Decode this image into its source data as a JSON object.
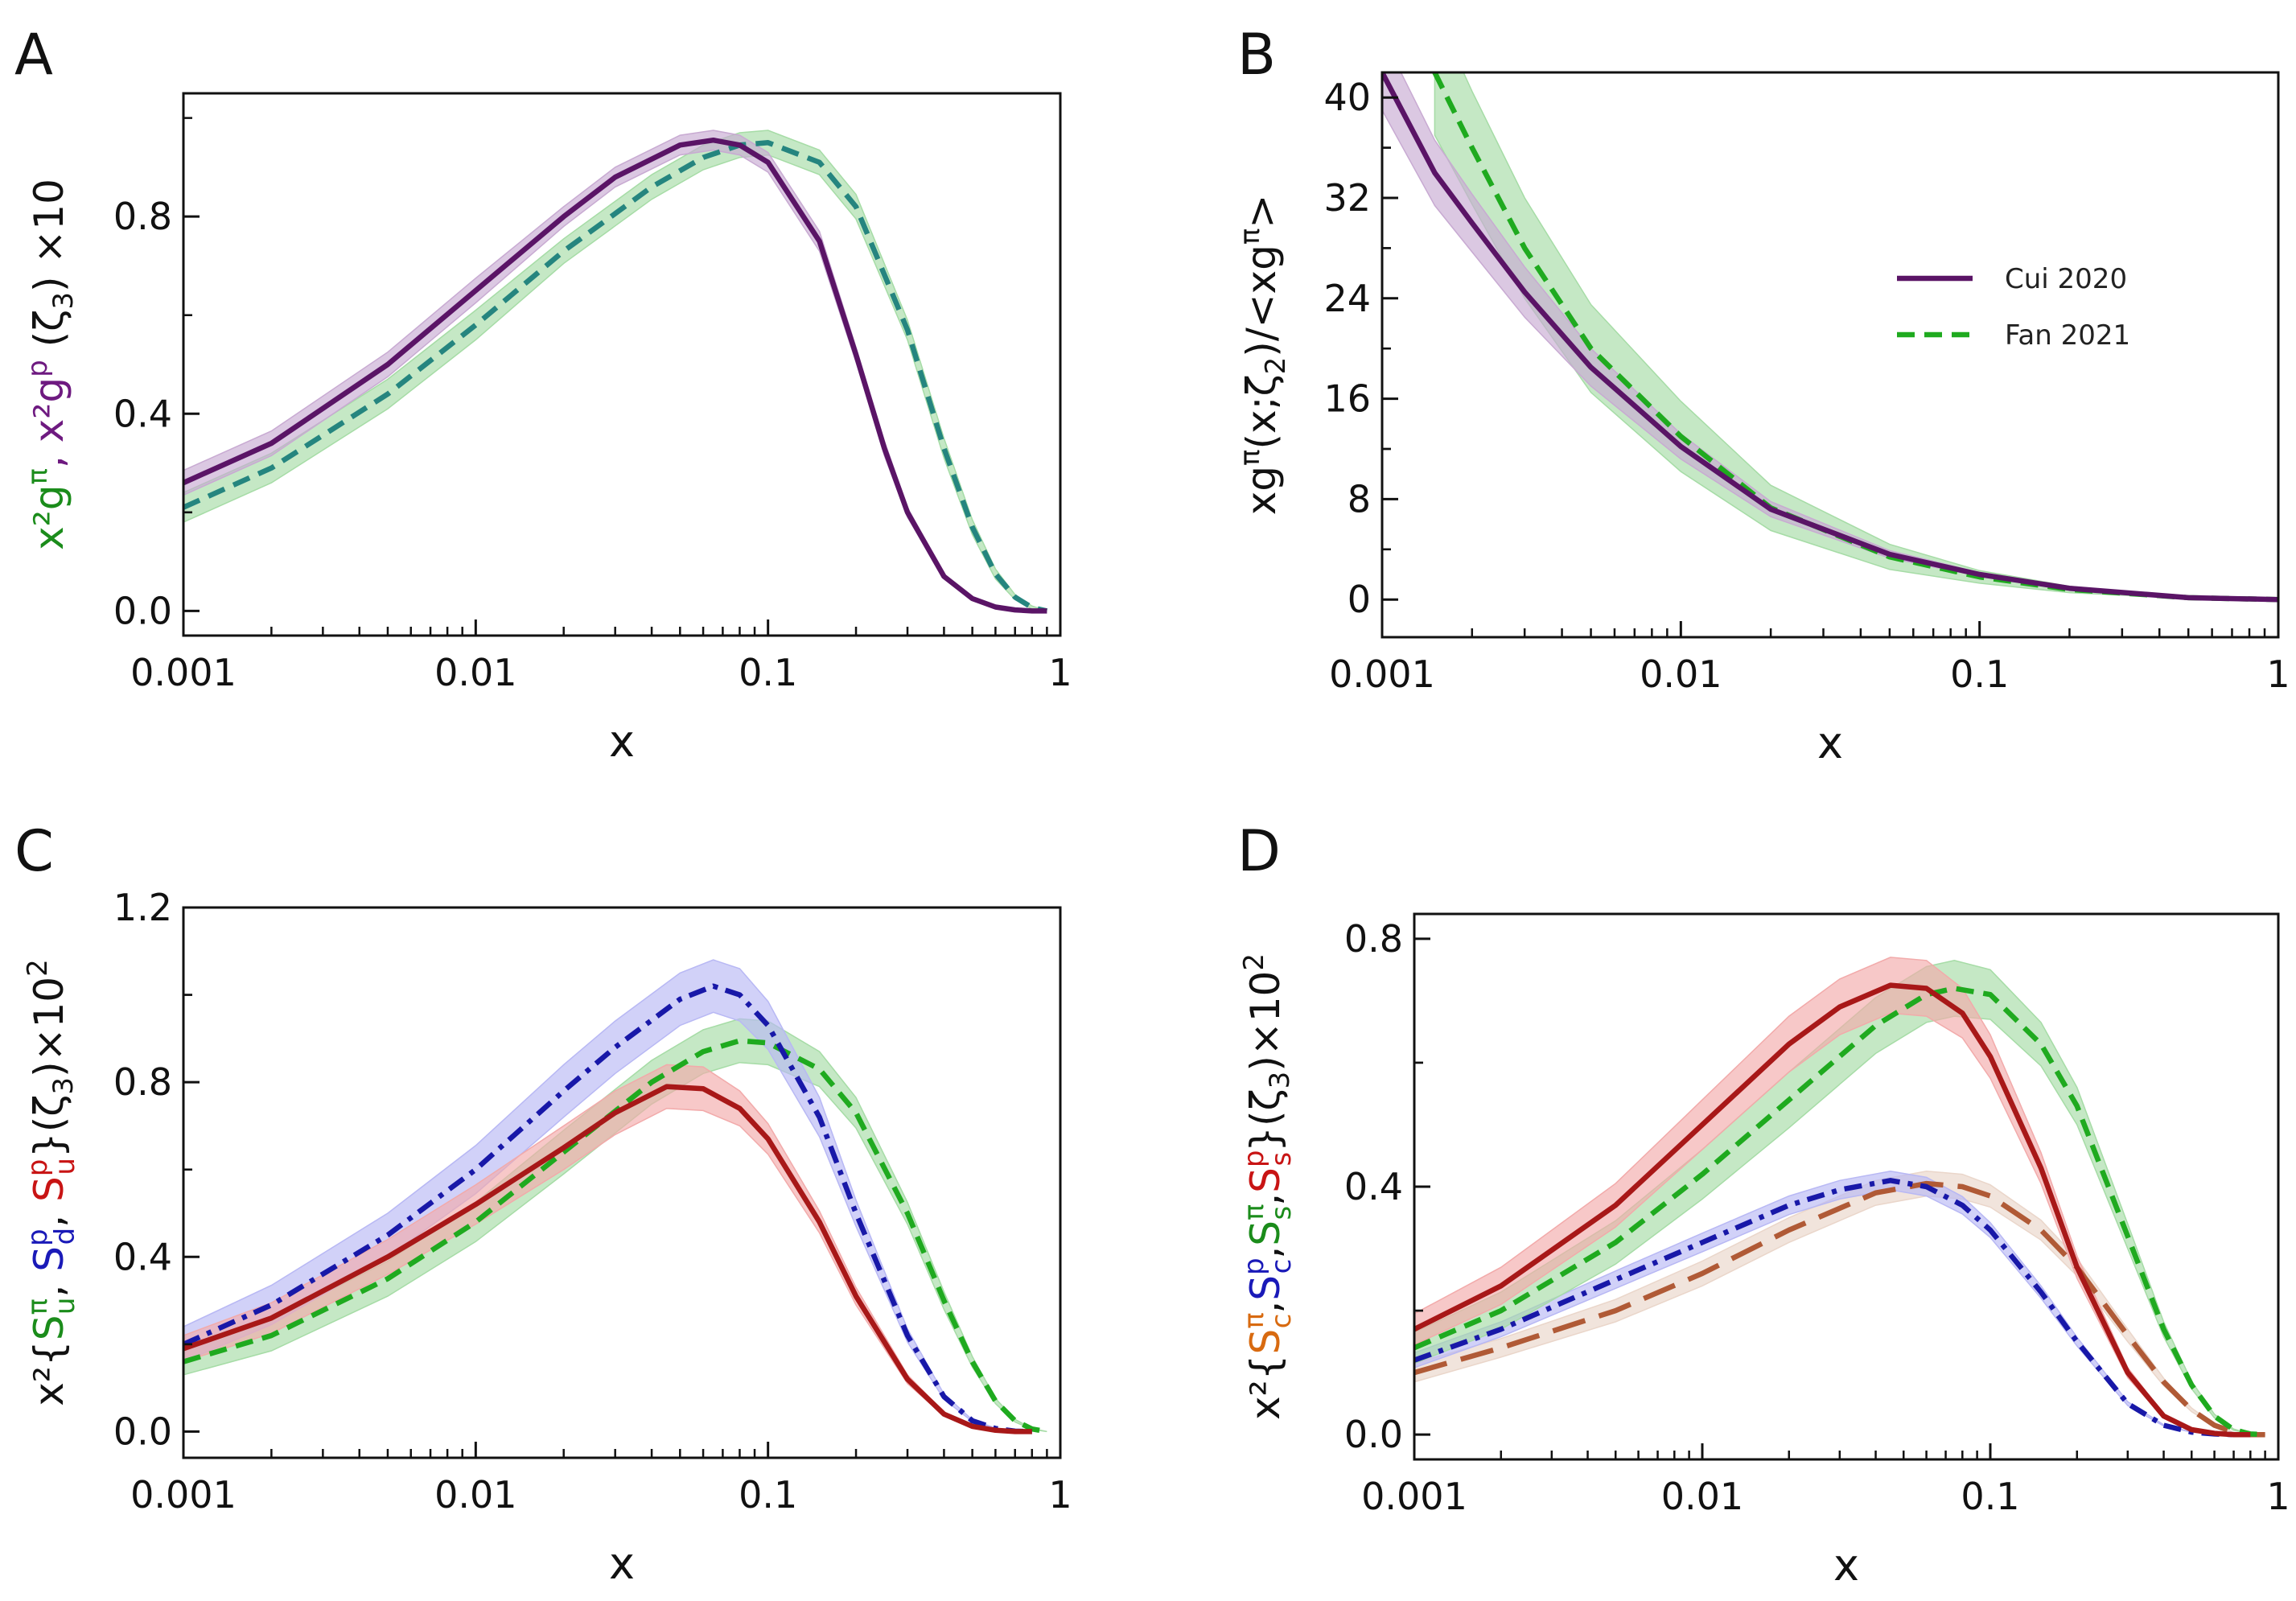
{
  "colors": {
    "purple": "#5a1466",
    "teal": "#25857f",
    "green": "#1faa1f",
    "blue": "#1818a8",
    "red": "#a81818",
    "brown": "#b05a36",
    "band_purple": "#c8aad2",
    "band_green": "#a6dca6",
    "band_blue": "#b8b8f4",
    "band_red": "#f2aaaa",
    "band_brown": "#ead6ca",
    "label_green": "#1b8c1b",
    "label_purple": "#6e1a80",
    "label_blue": "#1a1ab8",
    "label_red": "#c81414",
    "label_orange": "#d86a10"
  },
  "chart_data": [
    {
      "type": "line",
      "panel": "A",
      "xlabel": "x",
      "ylabel_parts": [
        {
          "text": "x²g",
          "sup": "π",
          "sub": "",
          "color": "label_green"
        },
        {
          "text": ", x²g",
          "sup": "p",
          "sub": "",
          "color": "label_purple"
        },
        {
          "text": " (ζ",
          "sup": "",
          "sub": "3",
          "color": "black"
        },
        {
          "text": ") ×10",
          "sup": "",
          "sub": "",
          "color": "black"
        }
      ],
      "xscale": "log",
      "xlim": [
        0.001,
        1
      ],
      "ylim": [
        -0.05,
        1.05
      ],
      "xticks": [
        "0.001",
        "0.01",
        "0.1",
        "1"
      ],
      "yticks": [
        "0.0",
        "0.4",
        "0.8"
      ],
      "series": [
        {
          "x": [
            0.001,
            0.002,
            0.005,
            0.01,
            0.02,
            0.04,
            0.06,
            0.08,
            0.1,
            0.15,
            0.2,
            0.3,
            0.4,
            0.5,
            0.6,
            0.7,
            0.8,
            0.9
          ],
          "y": [
            0.21,
            0.29,
            0.44,
            0.58,
            0.73,
            0.86,
            0.92,
            0.945,
            0.95,
            0.91,
            0.82,
            0.57,
            0.33,
            0.17,
            0.075,
            0.028,
            0.007,
            0.0
          ],
          "err": [
            0.03,
            0.03,
            0.03,
            0.03,
            0.025,
            0.025,
            0.025,
            0.025,
            0.025,
            0.025,
            0.025,
            0.02,
            0.02,
            0.015,
            0.01,
            0.005,
            0.003,
            0.0
          ],
          "color": "teal",
          "band": "band_green",
          "dash": "dashed"
        },
        {
          "x": [
            0.001,
            0.002,
            0.005,
            0.01,
            0.02,
            0.03,
            0.05,
            0.065,
            0.08,
            0.1,
            0.15,
            0.2,
            0.25,
            0.3,
            0.4,
            0.5,
            0.6,
            0.7,
            0.8,
            0.9
          ],
          "y": [
            0.26,
            0.34,
            0.5,
            0.65,
            0.8,
            0.88,
            0.945,
            0.955,
            0.945,
            0.91,
            0.75,
            0.52,
            0.33,
            0.2,
            0.07,
            0.025,
            0.008,
            0.002,
            0.0,
            0.0
          ],
          "err": [
            0.025,
            0.025,
            0.025,
            0.025,
            0.02,
            0.02,
            0.02,
            0.02,
            0.02,
            0.02,
            0.02,
            0.015,
            0.015,
            0.01,
            0.005,
            0.003,
            0.002,
            0.001,
            0.0,
            0.0
          ],
          "color": "purple",
          "band": "band_purple",
          "dash": "solid"
        }
      ]
    },
    {
      "type": "line",
      "panel": "B",
      "xlabel": "x",
      "ylabel_parts": [
        {
          "text": "xg",
          "sup": "π",
          "sub": "",
          "color": "black"
        },
        {
          "text": "(x;ζ",
          "sup": "",
          "sub": "2",
          "color": "black"
        },
        {
          "text": ")/<xg",
          "sup": "π",
          "sub": "",
          "color": "black"
        },
        {
          "text": ">",
          "sup": "",
          "sub": "",
          "color": "black"
        }
      ],
      "xscale": "log",
      "xlim": [
        0.001,
        1
      ],
      "ylim": [
        -3,
        42
      ],
      "xticks": [
        "0.001",
        "0.01",
        "0.1",
        "1"
      ],
      "yticks": [
        "0",
        "8",
        "16",
        "24",
        "32",
        "40"
      ],
      "legend": {
        "position": "right",
        "entries": [
          "Cui 2020",
          "Fan 2021"
        ]
      },
      "series": [
        {
          "name": "Fan 2021",
          "x": [
            0.0015,
            0.002,
            0.003,
            0.005,
            0.01,
            0.02,
            0.05,
            0.1,
            0.2,
            0.5,
            1
          ],
          "y": [
            42,
            36,
            28,
            20,
            13,
            7.3,
            3.4,
            1.8,
            0.8,
            0.15,
            0.0
          ],
          "err": [
            5,
            4.5,
            4,
            3.5,
            2.8,
            1.8,
            1.0,
            0.5,
            0.25,
            0.06,
            0.0
          ],
          "color": "green",
          "band": "band_green",
          "dash": "dashed"
        },
        {
          "name": "Cui 2020",
          "x": [
            0.001,
            0.0015,
            0.002,
            0.003,
            0.005,
            0.01,
            0.02,
            0.05,
            0.1,
            0.2,
            0.5,
            1
          ],
          "y": [
            42,
            34,
            30,
            24.5,
            18.5,
            12.2,
            7.2,
            3.6,
            2.0,
            0.9,
            0.15,
            0.0
          ],
          "err": [
            3,
            2.6,
            2.3,
            2.0,
            1.5,
            1.0,
            0.6,
            0.3,
            0.15,
            0.08,
            0.03,
            0.0
          ],
          "color": "purple",
          "band": "band_purple",
          "dash": "solid"
        }
      ]
    },
    {
      "type": "line",
      "panel": "C",
      "xlabel": "x",
      "ylabel_parts": [
        {
          "text": "x²{",
          "sup": "",
          "sub": "",
          "color": "black"
        },
        {
          "text": "S",
          "sup": "π",
          "sub": "u",
          "color": "label_green"
        },
        {
          "text": ", ",
          "sup": "",
          "sub": "",
          "color": "black"
        },
        {
          "text": "S",
          "sup": "p",
          "sub": "d",
          "color": "label_blue"
        },
        {
          "text": ", ",
          "sup": "",
          "sub": "",
          "color": "black"
        },
        {
          "text": "S",
          "sup": "p",
          "sub": "u",
          "color": "label_red"
        },
        {
          "text": "}(ζ",
          "sup": "",
          "sub": "3",
          "color": "black"
        },
        {
          "text": ")×10",
          "sup": "2",
          "sub": "",
          "color": "black"
        }
      ],
      "xscale": "log",
      "xlim": [
        0.001,
        1
      ],
      "ylim": [
        -0.06,
        1.2
      ],
      "xticks": [
        "0.001",
        "0.01",
        "0.1",
        "1"
      ],
      "yticks": [
        "0.0",
        "0.4",
        "0.8",
        "1.2"
      ],
      "series": [
        {
          "x": [
            0.001,
            0.002,
            0.005,
            0.01,
            0.02,
            0.04,
            0.06,
            0.08,
            0.1,
            0.15,
            0.2,
            0.3,
            0.4,
            0.5,
            0.6,
            0.7,
            0.8,
            0.9
          ],
          "y": [
            0.16,
            0.22,
            0.35,
            0.48,
            0.64,
            0.8,
            0.87,
            0.895,
            0.89,
            0.83,
            0.73,
            0.5,
            0.3,
            0.16,
            0.07,
            0.025,
            0.006,
            0.0
          ],
          "err": [
            0.03,
            0.035,
            0.04,
            0.045,
            0.05,
            0.05,
            0.05,
            0.05,
            0.05,
            0.04,
            0.035,
            0.025,
            0.02,
            0.012,
            0.006,
            0.003,
            0.001,
            0.0
          ],
          "color": "green",
          "band": "band_green",
          "dash": "dashed"
        },
        {
          "x": [
            0.001,
            0.002,
            0.005,
            0.01,
            0.02,
            0.03,
            0.05,
            0.065,
            0.08,
            0.1,
            0.15,
            0.2,
            0.3,
            0.4,
            0.5,
            0.6,
            0.7,
            0.8
          ],
          "y": [
            0.2,
            0.29,
            0.45,
            0.6,
            0.78,
            0.88,
            0.99,
            1.02,
            1.0,
            0.93,
            0.72,
            0.5,
            0.22,
            0.08,
            0.025,
            0.007,
            0.001,
            0.0
          ],
          "err": [
            0.04,
            0.045,
            0.05,
            0.055,
            0.06,
            0.06,
            0.06,
            0.06,
            0.06,
            0.055,
            0.045,
            0.03,
            0.015,
            0.006,
            0.002,
            0.001,
            0.0,
            0.0
          ],
          "color": "blue",
          "band": "band_blue",
          "dash": "dashdot"
        },
        {
          "x": [
            0.001,
            0.002,
            0.005,
            0.01,
            0.02,
            0.03,
            0.045,
            0.06,
            0.08,
            0.1,
            0.15,
            0.2,
            0.3,
            0.4,
            0.5,
            0.6,
            0.7,
            0.8
          ],
          "y": [
            0.19,
            0.26,
            0.4,
            0.52,
            0.65,
            0.73,
            0.79,
            0.785,
            0.74,
            0.67,
            0.48,
            0.31,
            0.12,
            0.04,
            0.012,
            0.003,
            0.0,
            0.0
          ],
          "err": [
            0.03,
            0.035,
            0.04,
            0.045,
            0.05,
            0.05,
            0.05,
            0.05,
            0.04,
            0.035,
            0.025,
            0.02,
            0.01,
            0.004,
            0.002,
            0.001,
            0.0,
            0.0
          ],
          "color": "red",
          "band": "band_red",
          "dash": "solid"
        }
      ]
    },
    {
      "type": "line",
      "panel": "D",
      "xlabel": "x",
      "ylabel_parts": [
        {
          "text": "x²{",
          "sup": "",
          "sub": "",
          "color": "black"
        },
        {
          "text": "S",
          "sup": "π",
          "sub": "c",
          "color": "label_orange"
        },
        {
          "text": ",",
          "sup": "",
          "sub": "",
          "color": "black"
        },
        {
          "text": "S",
          "sup": "p",
          "sub": "c",
          "color": "label_blue"
        },
        {
          "text": ",",
          "sup": "",
          "sub": "",
          "color": "black"
        },
        {
          "text": "S",
          "sup": "π",
          "sub": "s",
          "color": "label_green"
        },
        {
          "text": ",",
          "sup": "",
          "sub": "",
          "color": "black"
        },
        {
          "text": "S",
          "sup": "p",
          "sub": "s",
          "color": "label_red"
        },
        {
          "text": "}(ζ",
          "sup": "",
          "sub": "3",
          "color": "black"
        },
        {
          "text": ")×10",
          "sup": "2",
          "sub": "",
          "color": "black"
        }
      ],
      "xscale": "log",
      "xlim": [
        0.001,
        1
      ],
      "ylim": [
        -0.04,
        0.84
      ],
      "xticks": [
        "0.001",
        "0.01",
        "0.1",
        "1"
      ],
      "yticks": [
        "0.0",
        "0.4",
        "0.8"
      ],
      "series": [
        {
          "x": [
            0.001,
            0.002,
            0.005,
            0.01,
            0.02,
            0.04,
            0.06,
            0.08,
            0.1,
            0.15,
            0.2,
            0.3,
            0.4,
            0.5,
            0.6,
            0.7,
            0.8,
            0.9
          ],
          "y": [
            0.1,
            0.14,
            0.2,
            0.26,
            0.33,
            0.39,
            0.405,
            0.4,
            0.385,
            0.33,
            0.27,
            0.16,
            0.085,
            0.04,
            0.015,
            0.004,
            0.0,
            0.0
          ],
          "err": [
            0.015,
            0.015,
            0.018,
            0.02,
            0.02,
            0.02,
            0.02,
            0.02,
            0.018,
            0.016,
            0.014,
            0.01,
            0.006,
            0.003,
            0.001,
            0.0,
            0.0,
            0.0
          ],
          "color": "brown",
          "band": "band_brown",
          "dash": "longdash"
        },
        {
          "x": [
            0.001,
            0.002,
            0.005,
            0.01,
            0.02,
            0.03,
            0.045,
            0.06,
            0.08,
            0.1,
            0.15,
            0.2,
            0.3,
            0.4,
            0.5,
            0.6,
            0.7,
            0.8
          ],
          "y": [
            0.12,
            0.17,
            0.25,
            0.31,
            0.37,
            0.395,
            0.41,
            0.4,
            0.37,
            0.33,
            0.23,
            0.15,
            0.05,
            0.015,
            0.004,
            0.001,
            0.0,
            0.0
          ],
          "err": [
            0.012,
            0.012,
            0.014,
            0.015,
            0.015,
            0.015,
            0.015,
            0.015,
            0.014,
            0.012,
            0.01,
            0.007,
            0.003,
            0.001,
            0.0,
            0.0,
            0.0,
            0.0
          ],
          "color": "blue",
          "band": "band_blue",
          "dash": "dashdot"
        },
        {
          "x": [
            0.001,
            0.002,
            0.005,
            0.01,
            0.02,
            0.04,
            0.06,
            0.075,
            0.1,
            0.15,
            0.2,
            0.3,
            0.4,
            0.5,
            0.6,
            0.7,
            0.8,
            0.9
          ],
          "y": [
            0.14,
            0.2,
            0.31,
            0.42,
            0.54,
            0.66,
            0.71,
            0.72,
            0.71,
            0.63,
            0.53,
            0.32,
            0.17,
            0.08,
            0.03,
            0.008,
            0.001,
            0.0
          ],
          "err": [
            0.025,
            0.03,
            0.035,
            0.04,
            0.045,
            0.045,
            0.045,
            0.045,
            0.04,
            0.035,
            0.03,
            0.02,
            0.012,
            0.006,
            0.003,
            0.001,
            0.0,
            0.0
          ],
          "color": "green",
          "band": "band_green",
          "dash": "dashed"
        },
        {
          "x": [
            0.001,
            0.002,
            0.005,
            0.01,
            0.02,
            0.03,
            0.045,
            0.06,
            0.08,
            0.1,
            0.15,
            0.2,
            0.3,
            0.4,
            0.5,
            0.6,
            0.7,
            0.8
          ],
          "y": [
            0.17,
            0.24,
            0.37,
            0.5,
            0.63,
            0.69,
            0.725,
            0.72,
            0.68,
            0.61,
            0.43,
            0.27,
            0.1,
            0.03,
            0.008,
            0.002,
            0.0,
            0.0
          ],
          "err": [
            0.025,
            0.03,
            0.035,
            0.04,
            0.045,
            0.045,
            0.045,
            0.045,
            0.04,
            0.035,
            0.025,
            0.018,
            0.008,
            0.003,
            0.001,
            0.0,
            0.0,
            0.0
          ],
          "color": "red",
          "band": "band_red",
          "dash": "solid"
        }
      ]
    }
  ]
}
